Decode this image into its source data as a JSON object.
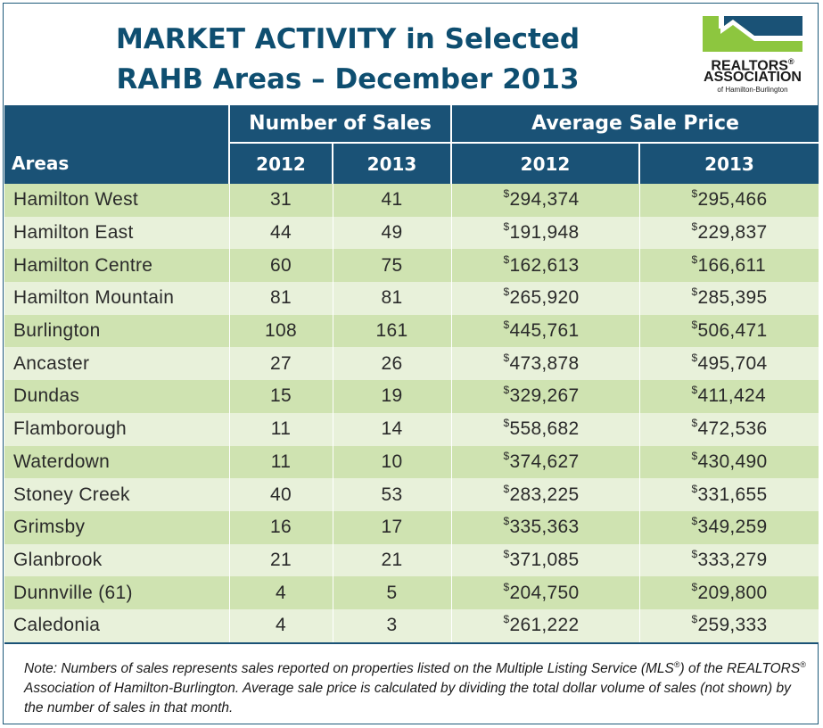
{
  "title": {
    "line1": "MARKET ACTIVITY in Selected",
    "line2": "RAHB Areas – December 2013"
  },
  "logo": {
    "org_line1": "REALTORS",
    "org_line2": "ASSOCIATION",
    "org_line3": "of Hamilton-Burlington",
    "registered": "®",
    "icon": "house-roofline-logo-icon",
    "colors": {
      "green": "#8dc63f",
      "blue": "#1a5276"
    }
  },
  "table": {
    "group_headers": {
      "sales": "Number of Sales",
      "price": "Average Sale Price"
    },
    "column_headers": {
      "areas": "Areas",
      "sales_2012": "2012",
      "sales_2013": "2013",
      "price_2012": "2012",
      "price_2013": "2013"
    },
    "currency_symbol": "$",
    "rows": [
      {
        "area": "Hamilton West",
        "sales_2012": "31",
        "sales_2013": "41",
        "price_2012": "294,374",
        "price_2013": "295,466"
      },
      {
        "area": "Hamilton East",
        "sales_2012": "44",
        "sales_2013": "49",
        "price_2012": "191,948",
        "price_2013": "229,837"
      },
      {
        "area": "Hamilton Centre",
        "sales_2012": "60",
        "sales_2013": "75",
        "price_2012": "162,613",
        "price_2013": "166,611"
      },
      {
        "area": "Hamilton Mountain",
        "sales_2012": "81",
        "sales_2013": "81",
        "price_2012": "265,920",
        "price_2013": "285,395"
      },
      {
        "area": "Burlington",
        "sales_2012": "108",
        "sales_2013": "161",
        "price_2012": "445,761",
        "price_2013": "506,471"
      },
      {
        "area": "Ancaster",
        "sales_2012": "27",
        "sales_2013": "26",
        "price_2012": "473,878",
        "price_2013": "495,704"
      },
      {
        "area": "Dundas",
        "sales_2012": "15",
        "sales_2013": "19",
        "price_2012": "329,267",
        "price_2013": "411,424"
      },
      {
        "area": "Flamborough",
        "sales_2012": "11",
        "sales_2013": "14",
        "price_2012": "558,682",
        "price_2013": "472,536"
      },
      {
        "area": "Waterdown",
        "sales_2012": "11",
        "sales_2013": "10",
        "price_2012": "374,627",
        "price_2013": "430,490"
      },
      {
        "area": "Stoney Creek",
        "sales_2012": "40",
        "sales_2013": "53",
        "price_2012": "283,225",
        "price_2013": "331,655"
      },
      {
        "area": "Grimsby",
        "sales_2012": "16",
        "sales_2013": "17",
        "price_2012": "335,363",
        "price_2013": "349,259"
      },
      {
        "area": "Glanbrook",
        "sales_2012": "21",
        "sales_2013": "21",
        "price_2012": "371,085",
        "price_2013": "333,279"
      },
      {
        "area": "Dunnville (61)",
        "sales_2012": "4",
        "sales_2013": "5",
        "price_2012": "204,750",
        "price_2013": "209,800"
      },
      {
        "area": "Caledonia",
        "sales_2012": "4",
        "sales_2013": "3",
        "price_2012": "261,222",
        "price_2013": "259,333"
      }
    ]
  },
  "note": {
    "part1": "Note:  Numbers of sales represents sales reported on properties listed on the Multiple Listing Service (MLS",
    "reg1": "®",
    "part2": ") of the REALTORS",
    "reg2": "®",
    "part3": " Association of Hamilton-Burlington.  Average sale price is calculated by dividing the total dollar volume of sales (not shown) by the number of sales in that month."
  },
  "colors": {
    "header_bg": "#1a5276",
    "title_text": "#0e4e70",
    "row_dark": "#cfe3b1",
    "row_light": "#e8f1da"
  }
}
